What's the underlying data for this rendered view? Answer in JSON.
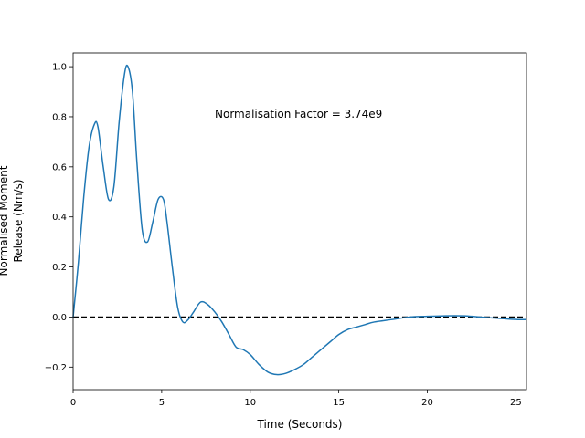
{
  "chart_data": {
    "type": "line",
    "title": "",
    "xlabel": "Time (Seconds)",
    "ylabel_lines": [
      "Normalised Moment",
      "Release (Nm/s)"
    ],
    "xlim": [
      0,
      25.6
    ],
    "ylim": [
      -0.29,
      1.055
    ],
    "xticks": [
      0,
      5,
      10,
      15,
      20,
      25
    ],
    "yticks": [
      -0.2,
      0.0,
      0.2,
      0.4,
      0.6,
      0.8,
      1.0
    ],
    "xtick_labels": [
      "0",
      "5",
      "10",
      "15",
      "20",
      "25"
    ],
    "ytick_labels": [
      "−0.2",
      "0.0",
      "0.2",
      "0.4",
      "0.6",
      "0.8",
      "1.0"
    ],
    "annotation": "Normalisation Factor = 3.74e9",
    "reference_line": {
      "y": 0.0,
      "style": "dashed",
      "color": "#000000"
    },
    "series": [
      {
        "color": "#1f77b4",
        "x": [
          0,
          0.3,
          0.6,
          0.9,
          1.2,
          1.4,
          1.7,
          2.0,
          2.3,
          2.6,
          2.9,
          3.1,
          3.35,
          3.6,
          3.9,
          4.2,
          4.5,
          4.8,
          5.1,
          5.3,
          5.6,
          5.9,
          6.2,
          6.5,
          6.8,
          7.2,
          7.6,
          8.0,
          8.4,
          8.8,
          9.2,
          9.6,
          10.0,
          10.5,
          11.0,
          11.5,
          12.0,
          12.5,
          13.0,
          13.5,
          14.0,
          14.5,
          15.0,
          15.5,
          16.0,
          16.5,
          17.0,
          18.0,
          19.0,
          20.0,
          21.0,
          22.0,
          22.5,
          23.0,
          24.0,
          25.0,
          25.6
        ],
        "y": [
          0.0,
          0.22,
          0.48,
          0.68,
          0.77,
          0.76,
          0.6,
          0.47,
          0.52,
          0.78,
          0.97,
          1.0,
          0.9,
          0.62,
          0.35,
          0.3,
          0.38,
          0.47,
          0.47,
          0.38,
          0.2,
          0.04,
          -0.02,
          -0.01,
          0.02,
          0.06,
          0.05,
          0.02,
          -0.02,
          -0.07,
          -0.12,
          -0.13,
          -0.15,
          -0.19,
          -0.22,
          -0.23,
          -0.225,
          -0.21,
          -0.19,
          -0.16,
          -0.13,
          -0.1,
          -0.07,
          -0.05,
          -0.04,
          -0.03,
          -0.02,
          -0.01,
          0.0,
          0.003,
          0.005,
          0.005,
          0.003,
          0.0,
          -0.005,
          -0.01,
          -0.01
        ]
      }
    ]
  }
}
